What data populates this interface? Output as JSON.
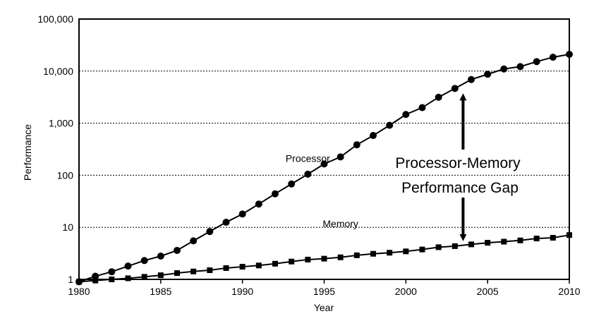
{
  "chart_data": {
    "type": "line",
    "title": "",
    "xlabel": "Year",
    "ylabel": "Performance",
    "xlim": [
      1980,
      2010
    ],
    "ylim": [
      1,
      100000
    ],
    "yscale": "log",
    "x_ticks": [
      1980,
      1985,
      1990,
      1995,
      2000,
      2005,
      2010
    ],
    "x_tick_labels": [
      "1980",
      "1985",
      "1990",
      "1995",
      "2000",
      "2005",
      "2010"
    ],
    "y_ticks": [
      1,
      10,
      100,
      1000,
      10000,
      100000
    ],
    "y_tick_labels": [
      "1",
      "10",
      "100",
      "1,000",
      "10,000",
      "100,000"
    ],
    "grid": "horizontal dotted",
    "legend": "none",
    "series": [
      {
        "name": "Processor",
        "marker": "circle",
        "label_position": [
          1994,
          180
        ],
        "x": [
          1980,
          1981,
          1982,
          1983,
          1984,
          1985,
          1986,
          1987,
          1988,
          1989,
          1990,
          1991,
          1992,
          1993,
          1994,
          1995,
          1996,
          1997,
          1998,
          1999,
          2000,
          2001,
          2002,
          2003,
          2004,
          2005,
          2006,
          2007,
          2008,
          2009,
          2010
        ],
        "values": [
          0.9,
          1.15,
          1.4,
          1.8,
          2.3,
          2.8,
          3.6,
          5.5,
          8.3,
          12.5,
          18,
          28,
          44,
          68,
          105,
          165,
          225,
          385,
          580,
          910,
          1470,
          1990,
          3150,
          4650,
          6900,
          8700,
          11000,
          12200,
          15200,
          18500,
          21000
        ]
      },
      {
        "name": "Memory",
        "marker": "square",
        "label_position": [
          1996,
          10
        ],
        "x": [
          1980,
          1981,
          1982,
          1983,
          1984,
          1985,
          1986,
          1987,
          1988,
          1989,
          1990,
          1991,
          1992,
          1993,
          1994,
          1995,
          1996,
          1997,
          1998,
          1999,
          2000,
          2001,
          2002,
          2003,
          2004,
          2005,
          2006,
          2007,
          2008,
          2009,
          2010
        ],
        "values": [
          0.9,
          0.95,
          1.0,
          1.05,
          1.12,
          1.2,
          1.32,
          1.42,
          1.5,
          1.65,
          1.75,
          1.85,
          2.0,
          2.2,
          2.4,
          2.5,
          2.65,
          2.9,
          3.1,
          3.25,
          3.45,
          3.75,
          4.15,
          4.35,
          4.7,
          5.05,
          5.3,
          5.6,
          6.1,
          6.3,
          7.1
        ]
      }
    ],
    "annotations": [
      {
        "text_lines": [
          "Processor-Memory",
          "Performance Gap"
        ],
        "arrow_x": 2003.5,
        "arrow_top_y": 4650,
        "arrow_bottom_y": 4.35
      }
    ]
  }
}
